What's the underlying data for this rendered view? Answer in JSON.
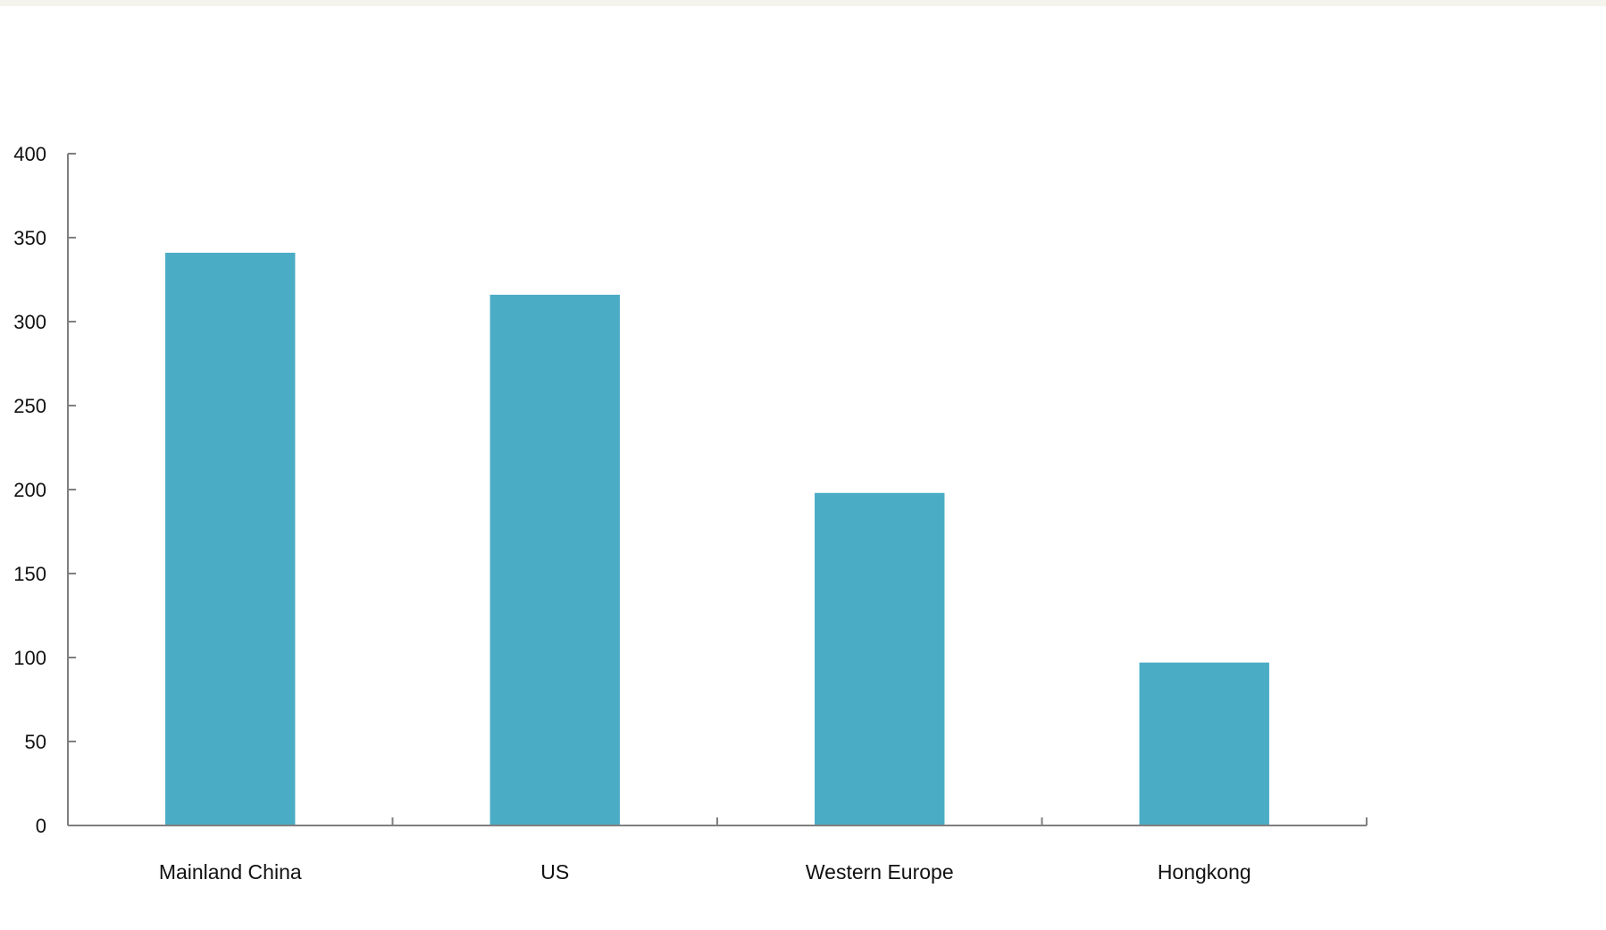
{
  "chart_data": {
    "type": "bar",
    "title": "",
    "xlabel": "",
    "ylabel": "",
    "categories": [
      "Mainland China",
      "US",
      "Western Europe",
      "Hongkong"
    ],
    "values": [
      341,
      316,
      198,
      97
    ],
    "ylim": [
      0,
      400
    ],
    "yticks": [
      0,
      50,
      100,
      150,
      200,
      250,
      300,
      350,
      400
    ],
    "grid": false,
    "legend": "none",
    "colors": {
      "bar": "#4bacc6",
      "axis": "#7f7f7f",
      "text": "#111111",
      "top_strip": "#f4f4ec"
    }
  }
}
